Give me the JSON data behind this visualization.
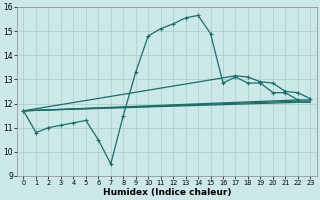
{
  "xlabel": "Humidex (Indice chaleur)",
  "background_color": "#cce8e8",
  "grid_color": "#aacccc",
  "line_color": "#1a6e6a",
  "xlim": [
    -0.5,
    23.5
  ],
  "ylim": [
    9,
    16
  ],
  "xticks": [
    0,
    1,
    2,
    3,
    4,
    5,
    6,
    7,
    8,
    9,
    10,
    11,
    12,
    13,
    14,
    15,
    16,
    17,
    18,
    19,
    20,
    21,
    22,
    23
  ],
  "yticks": [
    9,
    10,
    11,
    12,
    13,
    14,
    15,
    16
  ],
  "series_main": {
    "x": [
      0,
      1,
      2,
      3,
      4,
      5,
      6,
      7,
      8,
      9,
      10,
      11,
      12,
      13,
      14,
      15,
      16,
      17,
      18,
      19,
      20,
      21,
      22
    ],
    "y": [
      11.7,
      10.8,
      11.0,
      11.1,
      11.2,
      11.3,
      10.5,
      9.5,
      11.5,
      13.3,
      14.8,
      15.1,
      15.3,
      15.55,
      15.65,
      14.9,
      12.85,
      13.1,
      12.85,
      12.85,
      12.45,
      12.45,
      12.15
    ]
  },
  "series_line1": {
    "x": [
      0,
      17,
      18,
      19,
      20,
      21,
      22,
      23
    ],
    "y": [
      11.7,
      13.15,
      13.1,
      12.9,
      12.85,
      12.5,
      12.45,
      12.2
    ]
  },
  "series_line2": {
    "x": [
      0,
      22,
      23
    ],
    "y": [
      11.7,
      12.15,
      12.15
    ]
  },
  "series_line3": {
    "x": [
      0,
      22,
      23
    ],
    "y": [
      11.7,
      12.1,
      12.1
    ]
  },
  "series_line4": {
    "x": [
      0,
      22,
      23
    ],
    "y": [
      11.7,
      12.05,
      12.05
    ]
  }
}
